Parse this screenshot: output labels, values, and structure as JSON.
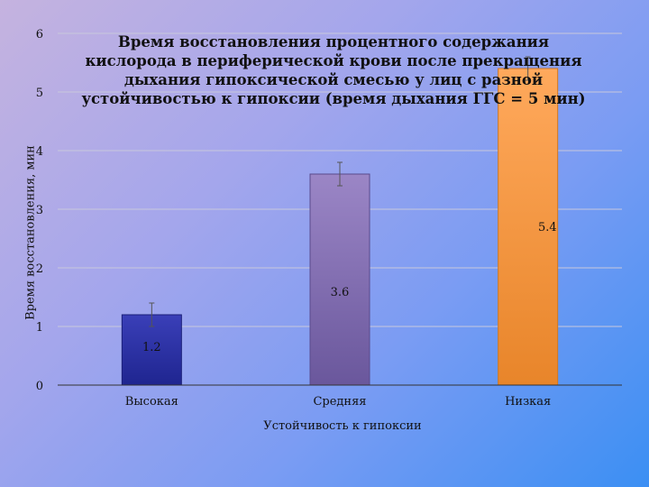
{
  "chart_data": {
    "type": "bar",
    "title": "Время восстановления процентного содержания кислорода в периферической крови после прекращения дыхания гипоксической смесью у лиц с разной устойчивостью к гипоксии (время дыхания ГГС = 5 мин)",
    "xlabel": "Устойчивость к гипоксии",
    "ylabel": "Время восстановления, мин",
    "categories": [
      "Высокая",
      "Средняя",
      "Низкая"
    ],
    "values": [
      1.2,
      3.6,
      5.4
    ],
    "data_labels": [
      "1.2",
      "3.6",
      "5.4"
    ],
    "error_bars": [
      0.2,
      0.2,
      0.2
    ],
    "ylim": [
      0,
      6
    ],
    "yticks": [
      0,
      1,
      2,
      3,
      4,
      5,
      6
    ],
    "grid": true,
    "legend": "none",
    "colors": {
      "bars": [
        {
          "top": "#3a3fb8",
          "bottom": "#1f2590",
          "edge": "#1a1f78"
        },
        {
          "top": "#9b86c6",
          "bottom": "#6a579c",
          "edge": "#5a4a8c"
        },
        {
          "top": "#ffa95c",
          "bottom": "#e8852a",
          "edge": "#d07820"
        }
      ],
      "grid": "#c8c8dc",
      "axis": "#333333"
    }
  }
}
